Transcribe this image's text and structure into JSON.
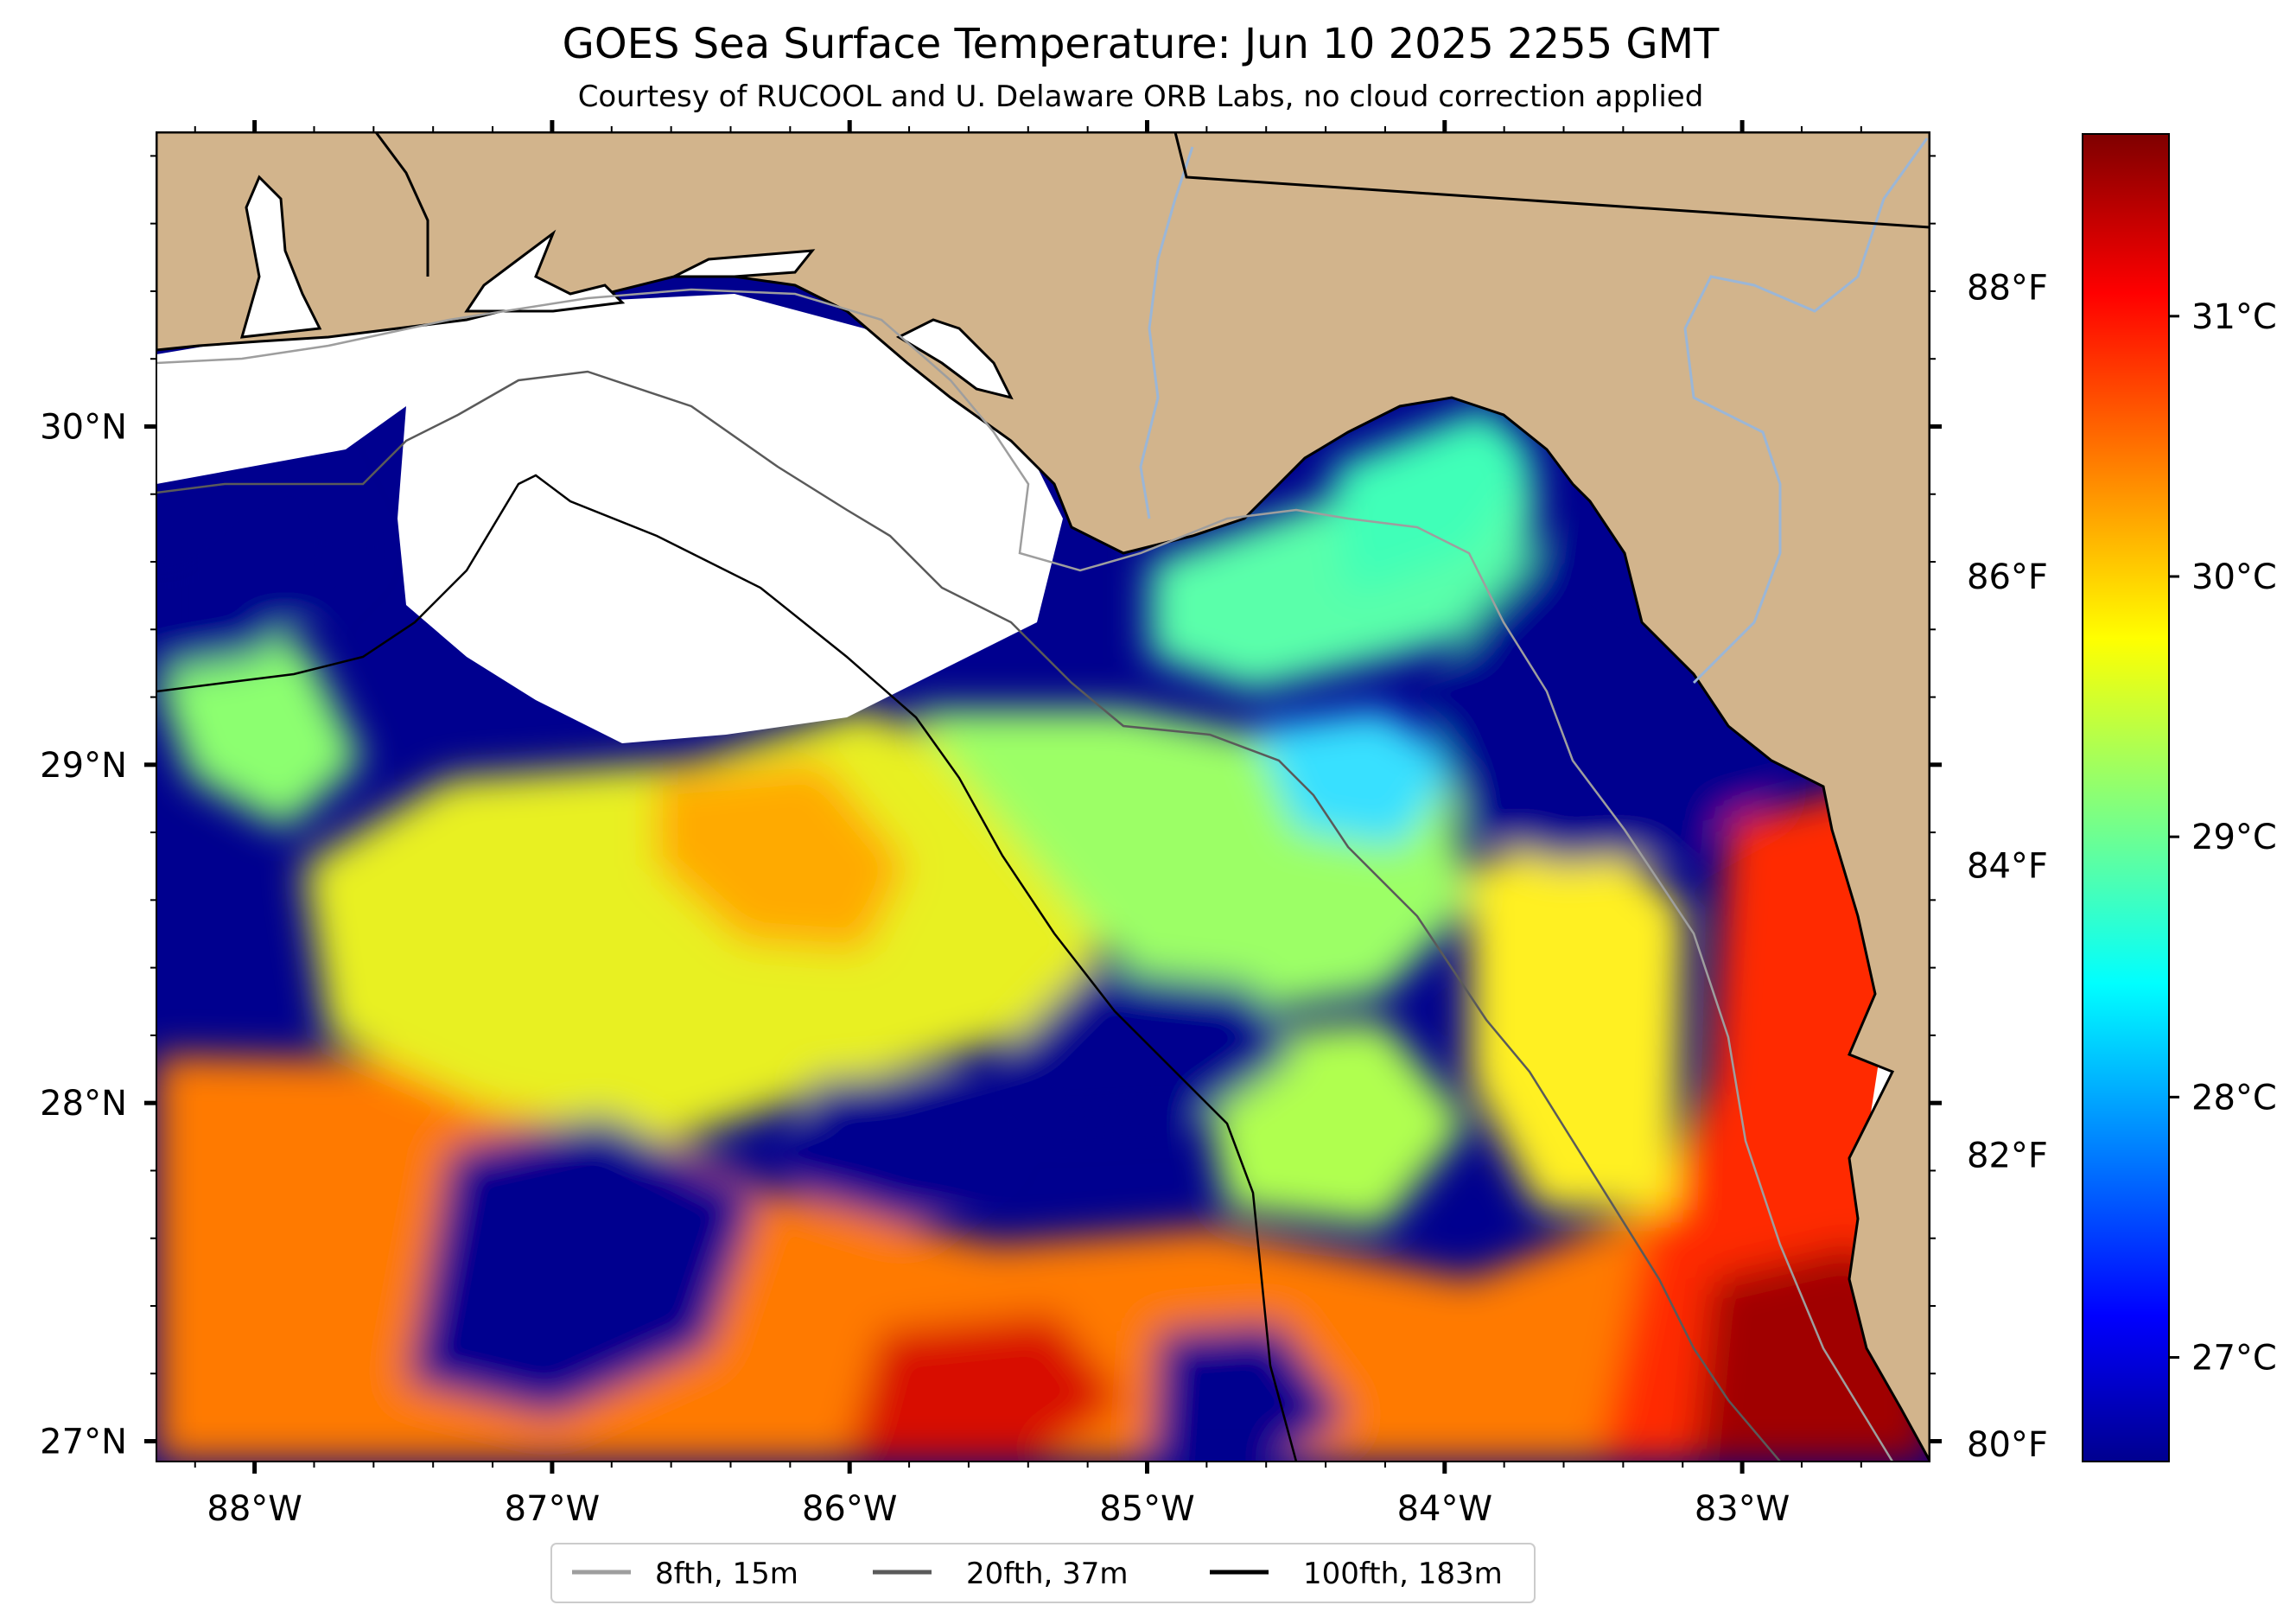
{
  "title": "GOES Sea Surface Temperature: Jun 10 2025 2255 GMT",
  "subtitle": "Courtesy of RUCOOL and U. Delaware ORB Labs, no cloud correction applied",
  "map": {
    "lon_ticks": [
      {
        "value": -88,
        "label": "88°W"
      },
      {
        "value": -87,
        "label": "87°W"
      },
      {
        "value": -86,
        "label": "86°W"
      },
      {
        "value": -85,
        "label": "85°W"
      },
      {
        "value": -84,
        "label": "84°W"
      },
      {
        "value": -83,
        "label": "83°W"
      }
    ],
    "lat_ticks": [
      {
        "value": 27,
        "label": "27°N"
      },
      {
        "value": 28,
        "label": "28°N"
      },
      {
        "value": 29,
        "label": "29°N"
      },
      {
        "value": 30,
        "label": "30°N"
      }
    ],
    "f_ticks": [
      {
        "value": 80,
        "label": "80°F"
      },
      {
        "value": 82,
        "label": "82°F"
      },
      {
        "value": 84,
        "label": "84°F"
      },
      {
        "value": 86,
        "label": "86°F"
      },
      {
        "value": 88,
        "label": "88°F"
      }
    ],
    "lon_range": [
      -88.33,
      -82.37
    ],
    "lat_range": [
      26.94,
      30.87
    ],
    "colors": {
      "land": "#d2b48c",
      "no_data": "#ffffff",
      "isobath_8": "#9e9e9e",
      "isobath_20": "#5a5a5a",
      "isobath_100": "#000000",
      "river": "#9bb6d6"
    }
  },
  "colorbar": {
    "colormap": "jet",
    "range_c": [
      26.6,
      31.7
    ],
    "ticks": [
      {
        "value": 27,
        "label": "27°C"
      },
      {
        "value": 28,
        "label": "28°C"
      },
      {
        "value": 29,
        "label": "29°C"
      },
      {
        "value": 30,
        "label": "30°C"
      },
      {
        "value": 31,
        "label": "31°C"
      }
    ]
  },
  "legend": {
    "items": [
      {
        "label": "8fth, 15m",
        "color": "#9e9e9e"
      },
      {
        "label": "20fth, 37m",
        "color": "#5a5a5a"
      },
      {
        "label": "100fth, 183m",
        "color": "#000000"
      }
    ]
  }
}
